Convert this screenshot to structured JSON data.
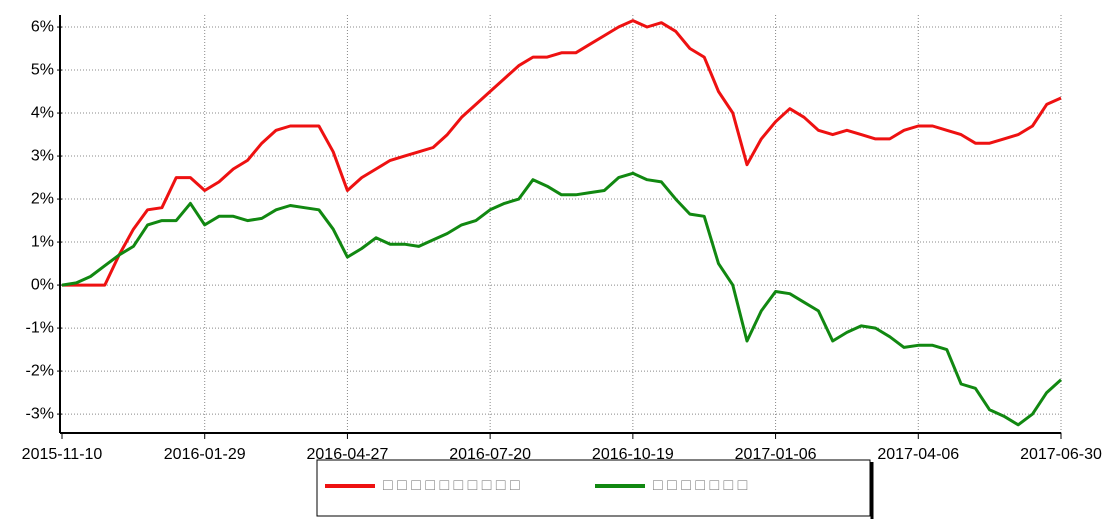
{
  "chart_data": {
    "type": "line",
    "categories": [
      "2015-11-10",
      null,
      null,
      null,
      null,
      null,
      null,
      null,
      null,
      null,
      "2016-01-29",
      null,
      null,
      null,
      null,
      null,
      null,
      null,
      null,
      null,
      "2016-04-27",
      null,
      null,
      null,
      null,
      null,
      null,
      null,
      null,
      null,
      "2016-07-20",
      null,
      null,
      null,
      null,
      null,
      null,
      null,
      null,
      null,
      "2016-10-19",
      null,
      null,
      null,
      null,
      null,
      null,
      null,
      null,
      null,
      "2017-01-06",
      null,
      null,
      null,
      null,
      null,
      null,
      null,
      null,
      null,
      "2017-04-06",
      null,
      null,
      null,
      null,
      null,
      null,
      null,
      null,
      null,
      "2017-06-30"
    ],
    "series": [
      {
        "name": "□ □ □ □ □ □ □ □ □ □",
        "color": "#ee1111",
        "values": [
          0,
          0,
          0,
          0,
          0.7,
          1.3,
          1.75,
          1.8,
          2.5,
          2.5,
          2.2,
          2.4,
          2.7,
          2.9,
          3.3,
          3.6,
          3.7,
          3.7,
          3.7,
          3.1,
          2.2,
          2.5,
          2.7,
          2.9,
          3.0,
          3.1,
          3.2,
          3.5,
          3.9,
          4.2,
          4.5,
          4.8,
          5.1,
          5.3,
          5.3,
          5.4,
          5.4,
          5.6,
          5.8,
          6.0,
          6.15,
          6.0,
          6.1,
          5.9,
          5.5,
          5.3,
          4.5,
          4.0,
          2.8,
          3.4,
          3.8,
          4.1,
          3.9,
          3.6,
          3.5,
          3.6,
          3.5,
          3.4,
          3.4,
          3.6,
          3.7,
          3.7,
          3.6,
          3.5,
          3.3,
          3.3,
          3.4,
          3.5,
          3.7,
          4.2,
          4.35
        ]
      },
      {
        "name": "□ □ □ □ □ □ □",
        "color": "#118811",
        "values": [
          0,
          0.05,
          0.2,
          0.45,
          0.7,
          0.9,
          1.4,
          1.5,
          1.5,
          1.9,
          1.4,
          1.6,
          1.6,
          1.5,
          1.55,
          1.75,
          1.85,
          1.8,
          1.75,
          1.3,
          0.65,
          0.85,
          1.1,
          0.95,
          0.95,
          0.9,
          1.05,
          1.2,
          1.4,
          1.5,
          1.75,
          1.9,
          2.0,
          2.45,
          2.3,
          2.1,
          2.1,
          2.15,
          2.2,
          2.5,
          2.6,
          2.45,
          2.4,
          2.0,
          1.65,
          1.6,
          0.5,
          0.0,
          -1.3,
          -0.6,
          -0.15,
          -0.2,
          -0.4,
          -0.6,
          -1.3,
          -1.1,
          -0.95,
          -1.0,
          -1.2,
          -1.45,
          -1.4,
          -1.4,
          -1.5,
          -2.3,
          -2.4,
          -2.9,
          -3.05,
          -3.25,
          -3.0,
          -2.5,
          -2.2
        ]
      }
    ],
    "ylim": [
      -3.44,
      6.28
    ],
    "yticks": [
      {
        "value": -3,
        "label": "-3%"
      },
      {
        "value": -2,
        "label": "-2%"
      },
      {
        "value": -1,
        "label": "-1%"
      },
      {
        "value": 0,
        "label": "0%"
      },
      {
        "value": 1,
        "label": "1%"
      },
      {
        "value": 2,
        "label": "2%"
      },
      {
        "value": 3,
        "label": "3%"
      },
      {
        "value": 4,
        "label": "4%"
      },
      {
        "value": 5,
        "label": "5%"
      },
      {
        "value": 6,
        "label": "6%"
      }
    ],
    "grid": true
  }
}
